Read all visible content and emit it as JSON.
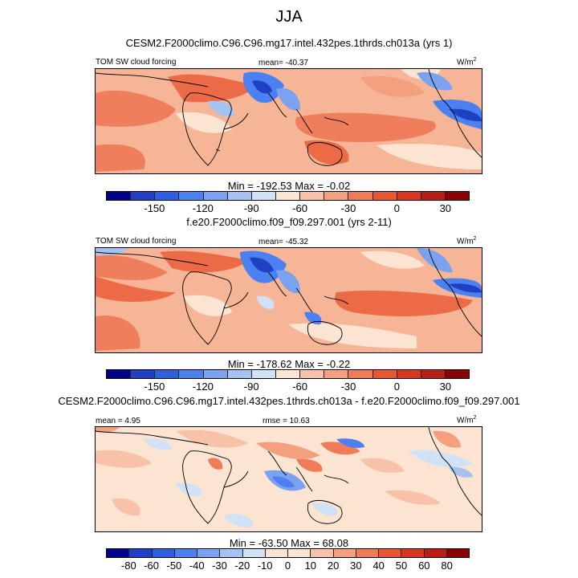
{
  "title": "JJA",
  "panels": [
    {
      "subtitle": "CESM2.F2000climo.C96.C96.mg17.intel.432pes.1thrds.ch013a (yrs 1)",
      "left_label": "TOM SW cloud forcing",
      "center_label": "mean= -40.37",
      "units": "W/m",
      "units_exp": "2",
      "minmax": "Min = -192.53 Max =  -0.02"
    },
    {
      "subtitle": "f.e20.F2000climo.f09_f09.297.001 (yrs 2-11)",
      "left_label": "TOM SW cloud forcing",
      "center_label": "mean= -45.32",
      "units": "W/m",
      "units_exp": "2",
      "minmax": "Min = -178.62 Max =  -0.22"
    },
    {
      "subtitle": "CESM2.F2000climo.C96.C96.mg17.intel.432pes.1thrds.ch013a - f.e20.F2000climo.f09_f09.297.001",
      "left_label": "mean =  4.95",
      "center_label": "rmse =  10.63",
      "units": "W/m",
      "units_exp": "2",
      "minmax": "Min = -63.50 Max =  68.08"
    }
  ],
  "chart_data": [
    {
      "type": "heatmap",
      "title": "CESM2.F2000climo.C96.C96.mg17.intel.432pes.1thrds.ch013a (yrs 1)",
      "variable": "TOM SW cloud forcing",
      "mean": -40.37,
      "min": -192.53,
      "max": -0.02,
      "colorbar_ticks": [
        "-150",
        "-120",
        "-90",
        "-60",
        "-30",
        "0",
        "30"
      ],
      "colorbar_levels": [
        -165,
        -150,
        -135,
        -120,
        -105,
        -90,
        -75,
        -60,
        -45,
        -30,
        -15,
        0,
        15,
        30,
        45
      ],
      "colorbar_colors": [
        "#00008b",
        "#1f3fc4",
        "#2e5fe0",
        "#4a80f0",
        "#7aa2ef",
        "#a6c2f2",
        "#d2e2f6",
        "#fbe4d2",
        "#f7c2a7",
        "#f4a07f",
        "#f07b58",
        "#ea5532",
        "#d8361e",
        "#b81e15",
        "#8b0000"
      ]
    },
    {
      "type": "heatmap",
      "title": "f.e20.F2000climo.f09_f09.297.001 (yrs 2-11)",
      "variable": "TOM SW cloud forcing",
      "mean": -45.32,
      "min": -178.62,
      "max": -0.22,
      "colorbar_ticks": [
        "-150",
        "-120",
        "-90",
        "-60",
        "-30",
        "0",
        "30"
      ],
      "colorbar_levels": [
        -165,
        -150,
        -135,
        -120,
        -105,
        -90,
        -75,
        -60,
        -45,
        -30,
        -15,
        0,
        15,
        30,
        45
      ],
      "colorbar_colors": [
        "#00008b",
        "#1f3fc4",
        "#2e5fe0",
        "#4a80f0",
        "#7aa2ef",
        "#a6c2f2",
        "#d2e2f6",
        "#fbe4d2",
        "#f7c2a7",
        "#f4a07f",
        "#f07b58",
        "#ea5532",
        "#d8361e",
        "#b81e15",
        "#8b0000"
      ]
    },
    {
      "type": "heatmap",
      "title": "CESM2.F2000climo.C96.C96.mg17.intel.432pes.1thrds.ch013a - f.e20.F2000climo.f09_f09.297.001",
      "mean": 4.95,
      "rmse": 10.63,
      "min": -63.5,
      "max": 68.08,
      "colorbar_ticks": [
        "-80",
        "-60",
        "-50",
        "-40",
        "-30",
        "-20",
        "-10",
        "0",
        "10",
        "20",
        "30",
        "40",
        "50",
        "60",
        "80"
      ],
      "colorbar_levels": [
        -80,
        -60,
        -50,
        -40,
        -30,
        -20,
        -10,
        0,
        10,
        20,
        30,
        40,
        50,
        60,
        80
      ],
      "colorbar_colors": [
        "#00008b",
        "#1f3fc4",
        "#2e5fe0",
        "#4a80f0",
        "#7aa2ef",
        "#a6c2f2",
        "#d2e2f6",
        "#fbe4d2",
        "#fbe4d2",
        "#f7c2a7",
        "#f4a07f",
        "#f07b58",
        "#ea5532",
        "#d8361e",
        "#b81e15",
        "#8b0000"
      ]
    }
  ]
}
